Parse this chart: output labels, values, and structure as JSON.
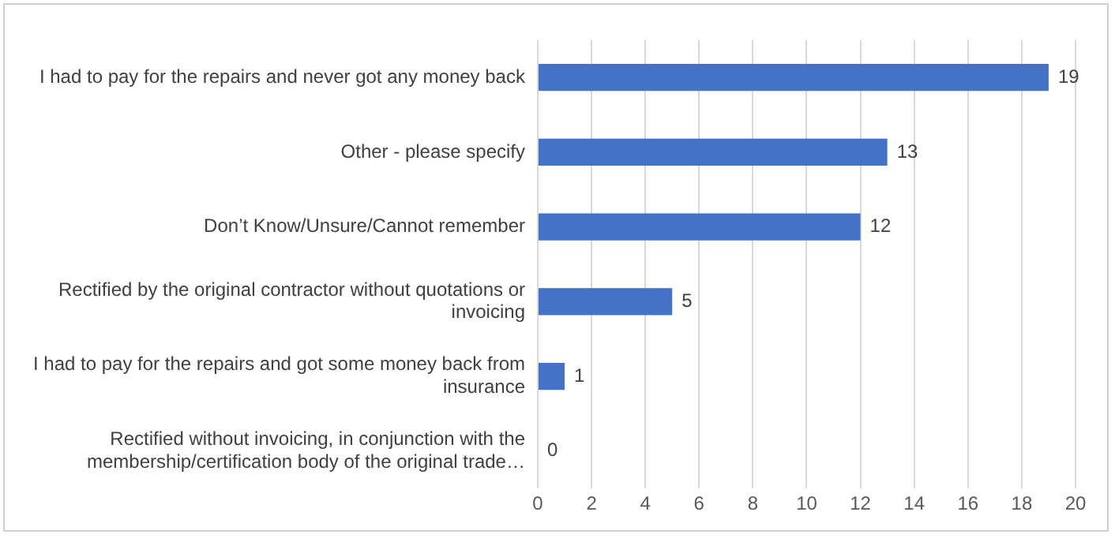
{
  "chart_data": {
    "type": "bar",
    "orientation": "horizontal",
    "categories": [
      "I had to pay for the repairs and never got any money back",
      "Other - please specify",
      "Don’t Know/Unsure/Cannot remember",
      "Rectified by the original contractor without quotations or invoicing",
      "I had to pay for the repairs and got some money back from insurance",
      "Rectified without invoicing, in conjunction with the membership/certification body of the original trade…"
    ],
    "values": [
      19,
      13,
      12,
      5,
      1,
      0
    ],
    "color": "#4472c4",
    "xlim": [
      0,
      20
    ],
    "xticks": [
      0,
      2,
      4,
      6,
      8,
      10,
      12,
      14,
      16,
      18,
      20
    ],
    "grid": "x",
    "data_labels": true,
    "legend": false
  }
}
